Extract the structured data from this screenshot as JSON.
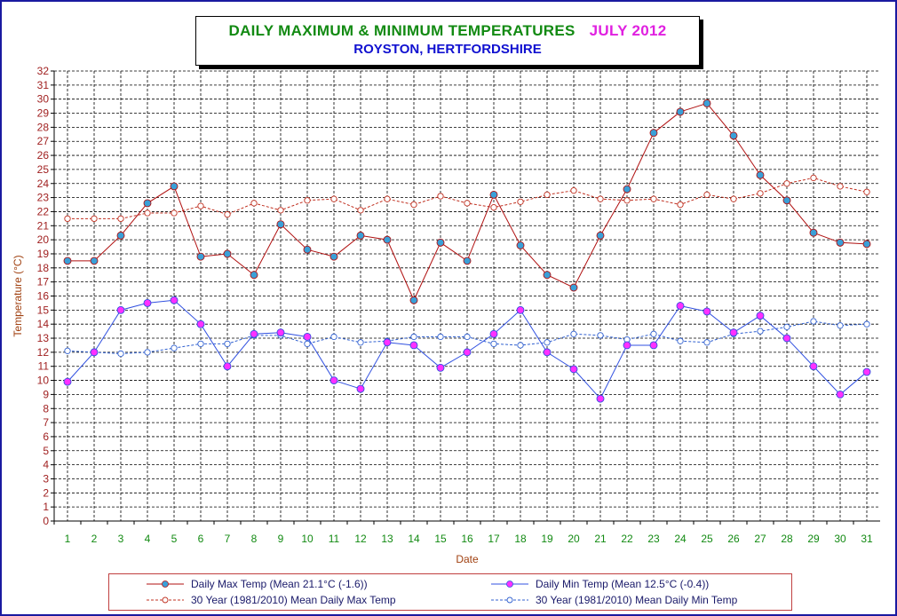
{
  "title": {
    "main": "DAILY MAXIMUM &  MINIMUM  TEMPERATURES",
    "month": "JULY 2012",
    "subtitle": "ROYSTON, HERTFORDSHIRE"
  },
  "colors": {
    "frame": "#1a1aa0",
    "max_line": "#b01010",
    "max_marker": "#3aa0d8",
    "min_line": "#3050e0",
    "min_marker": "#ff30ff",
    "mean_max": "#c03020",
    "mean_min": "#3060d0",
    "axis_text_x": "#128a12",
    "axis_text_y": "#a02020",
    "axis_title": "#a04010"
  },
  "chart_data": {
    "type": "line",
    "xlabel": "Date",
    "ylabel": "Temperature (°C)",
    "x": [
      1,
      2,
      3,
      4,
      5,
      6,
      7,
      8,
      9,
      10,
      11,
      12,
      13,
      14,
      15,
      16,
      17,
      18,
      19,
      20,
      21,
      22,
      23,
      24,
      25,
      26,
      27,
      28,
      29,
      30,
      31
    ],
    "ylim": [
      0,
      32
    ],
    "yticks": [
      0,
      1,
      2,
      3,
      4,
      5,
      6,
      7,
      8,
      9,
      10,
      11,
      12,
      13,
      14,
      15,
      16,
      17,
      18,
      19,
      20,
      21,
      22,
      23,
      24,
      25,
      26,
      27,
      28,
      29,
      30,
      31,
      32
    ],
    "grid": true,
    "legend_position": "bottom",
    "series": [
      {
        "name": "Daily Max Temp (Mean 21.1°C (-1.6))",
        "style": "solid",
        "values": [
          18.5,
          18.5,
          20.3,
          22.6,
          23.8,
          18.8,
          19.0,
          17.5,
          21.1,
          19.3,
          18.8,
          20.3,
          20.0,
          15.7,
          19.8,
          18.5,
          23.2,
          19.6,
          17.5,
          16.6,
          20.3,
          23.6,
          27.6,
          29.1,
          29.7,
          27.4,
          24.6,
          22.8,
          20.5,
          19.8,
          19.7
        ]
      },
      {
        "name": "Daily Min Temp (Mean 12.5°C (-0.4))",
        "style": "solid",
        "values": [
          9.9,
          12.0,
          15.0,
          15.5,
          15.7,
          14.0,
          11.0,
          13.3,
          13.4,
          13.1,
          10.0,
          9.4,
          12.7,
          12.5,
          10.9,
          12.0,
          13.3,
          15.0,
          12.0,
          10.8,
          8.7,
          12.5,
          12.5,
          15.3,
          14.9,
          13.4,
          14.6,
          13.0,
          11.0,
          9.0,
          10.6
        ]
      },
      {
        "name": "30 Year (1981/2010) Mean Daily Max Temp",
        "style": "dashed",
        "values": [
          21.5,
          21.5,
          21.5,
          21.9,
          21.9,
          22.4,
          21.8,
          22.6,
          22.1,
          22.8,
          22.9,
          22.1,
          22.9,
          22.5,
          23.1,
          22.6,
          22.3,
          22.7,
          23.2,
          23.5,
          22.9,
          22.8,
          22.9,
          22.5,
          23.2,
          22.9,
          23.3,
          24.0,
          24.4,
          23.8,
          23.4
        ]
      },
      {
        "name": "30 Year (1981/2010) Mean Daily Min Temp",
        "style": "dashed",
        "values": [
          12.1,
          12.0,
          11.9,
          12.0,
          12.3,
          12.6,
          12.6,
          13.2,
          13.2,
          12.6,
          13.1,
          12.7,
          12.8,
          13.1,
          13.1,
          13.1,
          12.6,
          12.5,
          12.7,
          13.3,
          13.2,
          12.9,
          13.3,
          12.8,
          12.7,
          13.3,
          13.5,
          13.8,
          14.2,
          13.9,
          14.0
        ]
      }
    ]
  }
}
